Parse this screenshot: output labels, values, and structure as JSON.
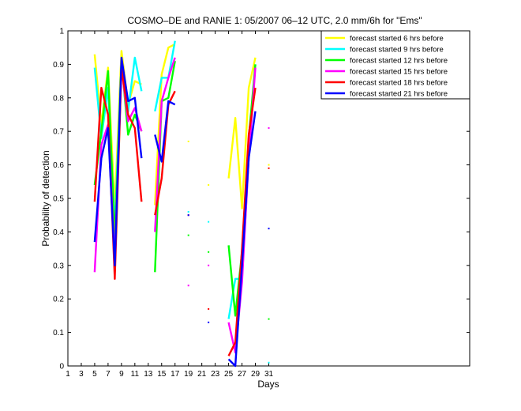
{
  "chart_data": {
    "type": "line",
    "title": "COSMO–DE and RANIE 1: 05/2007 06–12 UTC, 2.0 mm/6h for \"Ems\"",
    "xlabel": "Days",
    "ylabel": "Probability of detection",
    "xlim": [
      1,
      61
    ],
    "ylim": [
      0,
      1
    ],
    "xticks": [
      1,
      3,
      5,
      7,
      9,
      11,
      13,
      15,
      17,
      19,
      21,
      23,
      25,
      27,
      29,
      31
    ],
    "yticks": [
      0,
      0.1,
      0.2,
      0.3,
      0.4,
      0.5,
      0.6,
      0.7,
      0.8,
      0.9,
      1
    ],
    "ytick_labels": [
      "0",
      "0.1",
      "0.2",
      "0.3",
      "0.4",
      "0.5",
      "0.6",
      "0.7",
      "0.8",
      "0.9",
      "1"
    ],
    "grid": false,
    "legend_position": "top-right",
    "series": [
      {
        "name": "forecast started 6 hrs before",
        "color": "#ffff00",
        "x": [
          5,
          6,
          7,
          8,
          9,
          10,
          11,
          12,
          14,
          15,
          16,
          17,
          19,
          22,
          25,
          26,
          27,
          28,
          29,
          31
        ],
        "y": [
          0.93,
          0.72,
          0.89,
          0.47,
          0.94,
          0.78,
          0.85,
          0.84,
          0.48,
          0.87,
          0.95,
          0.96,
          0.67,
          0.54,
          0.56,
          0.74,
          0.47,
          0.83,
          0.92,
          0.6
        ]
      },
      {
        "name": "forecast started 9 hrs before",
        "color": "#00ffff",
        "x": [
          5,
          6,
          7,
          8,
          9,
          10,
          11,
          12,
          14,
          15,
          16,
          17,
          19,
          22,
          25,
          26,
          27,
          28,
          29,
          31
        ],
        "y": [
          0.89,
          0.68,
          0.83,
          0.41,
          0.91,
          0.76,
          0.92,
          0.82,
          0.76,
          0.86,
          0.86,
          0.97,
          0.46,
          0.43,
          0.14,
          0.26,
          0.26,
          0.62,
          0.9,
          0.01
        ]
      },
      {
        "name": "forecast started 12 hrs before",
        "color": "#00ff00",
        "x": [
          5,
          6,
          7,
          8,
          9,
          10,
          11,
          12,
          14,
          15,
          16,
          17,
          19,
          22,
          25,
          26,
          27,
          28,
          29,
          31
        ],
        "y": [
          0.54,
          0.7,
          0.88,
          0.37,
          0.91,
          0.69,
          0.75,
          0.7,
          0.28,
          0.79,
          0.8,
          0.91,
          0.39,
          0.34,
          0.36,
          0.15,
          0.34,
          0.68,
          0.9,
          0.14
        ]
      },
      {
        "name": "forecast started 15 hrs before",
        "color": "#ff00ff",
        "x": [
          5,
          6,
          7,
          8,
          9,
          10,
          11,
          12,
          14,
          15,
          16,
          17,
          19,
          22,
          25,
          26,
          27,
          28,
          29,
          31
        ],
        "y": [
          0.28,
          0.66,
          0.72,
          0.32,
          0.89,
          0.73,
          0.77,
          0.7,
          0.4,
          0.79,
          0.86,
          0.92,
          0.24,
          0.3,
          0.13,
          0.04,
          0.25,
          0.62,
          0.89,
          0.71
        ]
      },
      {
        "name": "forecast started 18 hrs before",
        "color": "#ff0000",
        "x": [
          5,
          6,
          7,
          8,
          9,
          10,
          11,
          12,
          14,
          15,
          16,
          17,
          19,
          22,
          25,
          26,
          27,
          28,
          29,
          31
        ],
        "y": [
          0.49,
          0.83,
          0.75,
          0.26,
          0.89,
          0.75,
          0.71,
          0.49,
          0.45,
          0.56,
          0.78,
          0.82,
          0.45,
          0.17,
          0.03,
          0.07,
          0.35,
          0.69,
          0.83,
          0.59
        ]
      },
      {
        "name": "forecast started 21 hrs before",
        "color": "#0000ff",
        "x": [
          5,
          6,
          7,
          8,
          9,
          10,
          11,
          12,
          14,
          15,
          16,
          17,
          19,
          22,
          25,
          26,
          27,
          28,
          29,
          31
        ],
        "y": [
          0.37,
          0.62,
          0.71,
          0.3,
          0.92,
          0.79,
          0.8,
          0.62,
          0.69,
          0.61,
          0.79,
          0.78,
          0.45,
          0.13,
          0.02,
          0.0,
          0.3,
          0.62,
          0.76,
          0.41
        ]
      }
    ]
  }
}
